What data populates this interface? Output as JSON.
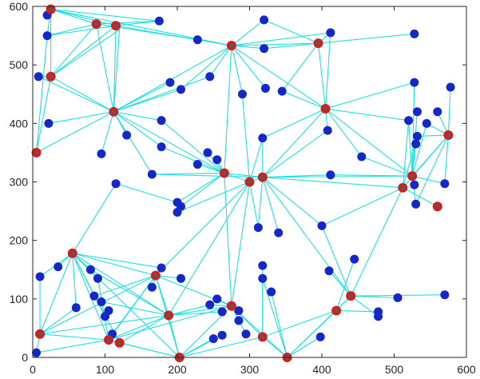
{
  "chart_data": {
    "type": "scatter",
    "title": "",
    "xlabel": "",
    "ylabel": "",
    "xlim": [
      0,
      600
    ],
    "ylim": [
      0,
      600
    ],
    "grid": false,
    "legend": "none",
    "x_ticks": [
      "0",
      "100",
      "200",
      "300",
      "400",
      "500",
      "600"
    ],
    "y_ticks": [
      "0",
      "100",
      "200",
      "300",
      "400",
      "500",
      "600"
    ],
    "colors": {
      "blue_node": "#1428c8",
      "red_node": "#d21e1e",
      "link": "#1fe0e0",
      "axis": "#262626"
    },
    "blue_nodes": [
      [
        20,
        585
      ],
      [
        20,
        550
      ],
      [
        8,
        480
      ],
      [
        22,
        400
      ],
      [
        95,
        348
      ],
      [
        130,
        380
      ],
      [
        115,
        297
      ],
      [
        175,
        575
      ],
      [
        228,
        543
      ],
      [
        190,
        470
      ],
      [
        205,
        458
      ],
      [
        245,
        480
      ],
      [
        178,
        405
      ],
      [
        178,
        360
      ],
      [
        165,
        313
      ],
      [
        320,
        577
      ],
      [
        320,
        528
      ],
      [
        412,
        555
      ],
      [
        290,
        450
      ],
      [
        322,
        460
      ],
      [
        345,
        455
      ],
      [
        318,
        375
      ],
      [
        242,
        350
      ],
      [
        255,
        338
      ],
      [
        228,
        330
      ],
      [
        200,
        265
      ],
      [
        205,
        258
      ],
      [
        200,
        248
      ],
      [
        312,
        222
      ],
      [
        340,
        213
      ],
      [
        408,
        388
      ],
      [
        412,
        312
      ],
      [
        455,
        343
      ],
      [
        400,
        225
      ],
      [
        528,
        553
      ],
      [
        528,
        470
      ],
      [
        578,
        462
      ],
      [
        532,
        420
      ],
      [
        520,
        405
      ],
      [
        545,
        400
      ],
      [
        532,
        378
      ],
      [
        530,
        365
      ],
      [
        560,
        420
      ],
      [
        570,
        297
      ],
      [
        530,
        262
      ],
      [
        528,
        295
      ],
      [
        10,
        138
      ],
      [
        35,
        155
      ],
      [
        60,
        85
      ],
      [
        80,
        150
      ],
      [
        90,
        135
      ],
      [
        85,
        105
      ],
      [
        95,
        95
      ],
      [
        105,
        80
      ],
      [
        100,
        70
      ],
      [
        110,
        40
      ],
      [
        165,
        120
      ],
      [
        178,
        153
      ],
      [
        205,
        135
      ],
      [
        245,
        90
      ],
      [
        255,
        100
      ],
      [
        262,
        78
      ],
      [
        285,
        80
      ],
      [
        285,
        63
      ],
      [
        262,
        38
      ],
      [
        250,
        32
      ],
      [
        295,
        40
      ],
      [
        318,
        157
      ],
      [
        318,
        135
      ],
      [
        330,
        112
      ],
      [
        445,
        168
      ],
      [
        410,
        148
      ],
      [
        505,
        102
      ],
      [
        478,
        78
      ],
      [
        478,
        70
      ],
      [
        398,
        35
      ],
      [
        570,
        107
      ],
      [
        5,
        8
      ]
    ],
    "red_nodes": [
      [
        25,
        595
      ],
      [
        88,
        570
      ],
      [
        115,
        567
      ],
      [
        275,
        533
      ],
      [
        395,
        537
      ],
      [
        25,
        480
      ],
      [
        112,
        420
      ],
      [
        5,
        350
      ],
      [
        405,
        425
      ],
      [
        575,
        380
      ],
      [
        265,
        315
      ],
      [
        300,
        300
      ],
      [
        318,
        308
      ],
      [
        525,
        310
      ],
      [
        512,
        290
      ],
      [
        560,
        258
      ],
      [
        55,
        178
      ],
      [
        170,
        140
      ],
      [
        188,
        72
      ],
      [
        275,
        88
      ],
      [
        318,
        35
      ],
      [
        10,
        40
      ],
      [
        105,
        30
      ],
      [
        120,
        25
      ],
      [
        203,
        0
      ],
      [
        352,
        0
      ],
      [
        420,
        80
      ],
      [
        440,
        105
      ]
    ],
    "links": [
      [
        25,
        595,
        20,
        585
      ],
      [
        25,
        595,
        20,
        550
      ],
      [
        25,
        595,
        88,
        570
      ],
      [
        25,
        595,
        115,
        567
      ],
      [
        25,
        595,
        175,
        575
      ],
      [
        25,
        595,
        275,
        533
      ],
      [
        25,
        595,
        25,
        480
      ],
      [
        20,
        550,
        115,
        567
      ],
      [
        20,
        550,
        88,
        570
      ],
      [
        88,
        570,
        175,
        575
      ],
      [
        88,
        570,
        228,
        543
      ],
      [
        88,
        570,
        25,
        480
      ],
      [
        115,
        567,
        175,
        575
      ],
      [
        115,
        567,
        275,
        533
      ],
      [
        115,
        567,
        25,
        480
      ],
      [
        115,
        567,
        120,
        560
      ],
      [
        120,
        560,
        25,
        480
      ],
      [
        120,
        560,
        112,
        420
      ],
      [
        115,
        567,
        112,
        420
      ],
      [
        88,
        570,
        112,
        420
      ],
      [
        8,
        480,
        25,
        480
      ],
      [
        8,
        480,
        112,
        420
      ],
      [
        25,
        480,
        112,
        420
      ],
      [
        25,
        480,
        5,
        350
      ],
      [
        20,
        550,
        5,
        350
      ],
      [
        22,
        400,
        112,
        420
      ],
      [
        5,
        350,
        112,
        420
      ],
      [
        95,
        348,
        112,
        420
      ],
      [
        130,
        380,
        112,
        420
      ],
      [
        112,
        420,
        190,
        470
      ],
      [
        112,
        420,
        178,
        405
      ],
      [
        112,
        420,
        178,
        360
      ],
      [
        112,
        420,
        165,
        313
      ],
      [
        112,
        420,
        275,
        533
      ],
      [
        112,
        420,
        245,
        480
      ],
      [
        112,
        420,
        265,
        315
      ],
      [
        112,
        420,
        205,
        458
      ],
      [
        228,
        543,
        275,
        533
      ],
      [
        275,
        533,
        395,
        537
      ],
      [
        275,
        533,
        412,
        555
      ],
      [
        275,
        533,
        320,
        528
      ],
      [
        275,
        533,
        290,
        450
      ],
      [
        275,
        533,
        322,
        460
      ],
      [
        275,
        533,
        205,
        458
      ],
      [
        275,
        533,
        245,
        480
      ],
      [
        275,
        533,
        265,
        315
      ],
      [
        275,
        533,
        405,
        425
      ],
      [
        395,
        537,
        412,
        555
      ],
      [
        395,
        537,
        320,
        528
      ],
      [
        395,
        537,
        320,
        577
      ],
      [
        395,
        537,
        528,
        553
      ],
      [
        395,
        537,
        345,
        455
      ],
      [
        395,
        537,
        405,
        425
      ],
      [
        320,
        577,
        275,
        533
      ],
      [
        405,
        425,
        412,
        555
      ],
      [
        405,
        425,
        408,
        388
      ],
      [
        405,
        425,
        318,
        375
      ],
      [
        405,
        425,
        455,
        343
      ],
      [
        405,
        425,
        528,
        470
      ],
      [
        405,
        425,
        520,
        405
      ],
      [
        405,
        425,
        525,
        310
      ],
      [
        405,
        425,
        318,
        308
      ],
      [
        405,
        425,
        345,
        455
      ],
      [
        178,
        405,
        265,
        315
      ],
      [
        178,
        360,
        265,
        315
      ],
      [
        165,
        313,
        265,
        315
      ],
      [
        165,
        313,
        318,
        308
      ],
      [
        242,
        350,
        265,
        315
      ],
      [
        255,
        338,
        265,
        315
      ],
      [
        228,
        330,
        265,
        315
      ],
      [
        265,
        315,
        300,
        300
      ],
      [
        265,
        315,
        318,
        308
      ],
      [
        300,
        300,
        318,
        308
      ],
      [
        318,
        375,
        300,
        300
      ],
      [
        318,
        375,
        318,
        308
      ],
      [
        290,
        450,
        300,
        300
      ],
      [
        318,
        308,
        412,
        312
      ],
      [
        318,
        308,
        525,
        310
      ],
      [
        318,
        308,
        312,
        222
      ],
      [
        318,
        308,
        340,
        213
      ],
      [
        300,
        300,
        312,
        222
      ],
      [
        265,
        315,
        200,
        265
      ],
      [
        265,
        315,
        205,
        258
      ],
      [
        300,
        300,
        200,
        248
      ],
      [
        318,
        308,
        400,
        225
      ],
      [
        318,
        308,
        408,
        388
      ],
      [
        300,
        300,
        170,
        140
      ],
      [
        300,
        300,
        188,
        72
      ],
      [
        265,
        315,
        275,
        88
      ],
      [
        300,
        300,
        275,
        88
      ],
      [
        200,
        265,
        115,
        297
      ],
      [
        115,
        297,
        55,
        178
      ],
      [
        412,
        312,
        525,
        310
      ],
      [
        525,
        310,
        575,
        380
      ],
      [
        525,
        310,
        532,
        420
      ],
      [
        525,
        310,
        520,
        405
      ],
      [
        525,
        310,
        545,
        400
      ],
      [
        525,
        310,
        530,
        365
      ],
      [
        525,
        310,
        528,
        295
      ],
      [
        525,
        310,
        530,
        262
      ],
      [
        525,
        310,
        570,
        297
      ],
      [
        512,
        290,
        575,
        380
      ],
      [
        512,
        290,
        532,
        378
      ],
      [
        512,
        290,
        560,
        258
      ],
      [
        512,
        290,
        520,
        405
      ],
      [
        512,
        290,
        400,
        225
      ],
      [
        512,
        290,
        318,
        308
      ],
      [
        575,
        380,
        578,
        462
      ],
      [
        575,
        380,
        560,
        420
      ],
      [
        575,
        380,
        532,
        378
      ],
      [
        575,
        380,
        545,
        400
      ],
      [
        575,
        380,
        530,
        262
      ],
      [
        575,
        380,
        570,
        297
      ],
      [
        528,
        470,
        525,
        310
      ],
      [
        512,
        290,
        440,
        105
      ],
      [
        400,
        225,
        440,
        105
      ],
      [
        455,
        343,
        525,
        310
      ],
      [
        55,
        178,
        10,
        138
      ],
      [
        55,
        178,
        35,
        155
      ],
      [
        55,
        178,
        60,
        85
      ],
      [
        55,
        178,
        80,
        150
      ],
      [
        55,
        178,
        90,
        135
      ],
      [
        55,
        178,
        10,
        40
      ],
      [
        55,
        178,
        105,
        30
      ],
      [
        55,
        178,
        170,
        140
      ],
      [
        55,
        178,
        178,
        153
      ],
      [
        55,
        178,
        188,
        72
      ],
      [
        55,
        178,
        120,
        25
      ],
      [
        55,
        178,
        100,
        70
      ],
      [
        55,
        178,
        203,
        0
      ],
      [
        10,
        40,
        105,
        30
      ],
      [
        10,
        40,
        5,
        8
      ],
      [
        10,
        40,
        60,
        85
      ],
      [
        10,
        40,
        170,
        140
      ],
      [
        10,
        40,
        188,
        72
      ],
      [
        105,
        30,
        120,
        25
      ],
      [
        105,
        30,
        170,
        140
      ],
      [
        105,
        30,
        188,
        72
      ],
      [
        105,
        30,
        203,
        0
      ],
      [
        105,
        30,
        275,
        88
      ],
      [
        120,
        25,
        188,
        72
      ],
      [
        120,
        25,
        203,
        0
      ],
      [
        170,
        140,
        188,
        72
      ],
      [
        170,
        140,
        165,
        120
      ],
      [
        170,
        140,
        178,
        153
      ],
      [
        170,
        140,
        205,
        135
      ],
      [
        170,
        140,
        275,
        88
      ],
      [
        170,
        140,
        203,
        0
      ],
      [
        188,
        72,
        275,
        88
      ],
      [
        188,
        72,
        245,
        90
      ],
      [
        188,
        72,
        203,
        0
      ],
      [
        188,
        72,
        262,
        78
      ],
      [
        203,
        0,
        275,
        88
      ],
      [
        203,
        0,
        352,
        0
      ],
      [
        203,
        0,
        262,
        38
      ],
      [
        203,
        0,
        250,
        32
      ],
      [
        203,
        0,
        318,
        35
      ],
      [
        275,
        88,
        318,
        35
      ],
      [
        275,
        88,
        352,
        0
      ],
      [
        275,
        88,
        295,
        40
      ],
      [
        275,
        88,
        285,
        63
      ],
      [
        275,
        88,
        245,
        90
      ],
      [
        275,
        88,
        255,
        100
      ],
      [
        318,
        35,
        352,
        0
      ],
      [
        318,
        35,
        318,
        135
      ],
      [
        318,
        35,
        318,
        157
      ],
      [
        318,
        35,
        420,
        80
      ],
      [
        352,
        0,
        420,
        80
      ],
      [
        352,
        0,
        440,
        105
      ],
      [
        352,
        0,
        330,
        112
      ],
      [
        352,
        0,
        398,
        35
      ],
      [
        420,
        80,
        440,
        105
      ],
      [
        420,
        80,
        445,
        168
      ],
      [
        420,
        80,
        478,
        78
      ],
      [
        440,
        105,
        505,
        102
      ],
      [
        440,
        105,
        570,
        107
      ],
      [
        440,
        105,
        478,
        70
      ],
      [
        440,
        105,
        410,
        148
      ],
      [
        440,
        105,
        318,
        308
      ],
      [
        318,
        135,
        352,
        0
      ],
      [
        90,
        135,
        105,
        30
      ],
      [
        80,
        150,
        188,
        72
      ],
      [
        85,
        105,
        170,
        140
      ],
      [
        5,
        8,
        105,
        30
      ],
      [
        110,
        40,
        170,
        140
      ],
      [
        95,
        95,
        188,
        72
      ],
      [
        10,
        138,
        10,
        40
      ]
    ]
  }
}
